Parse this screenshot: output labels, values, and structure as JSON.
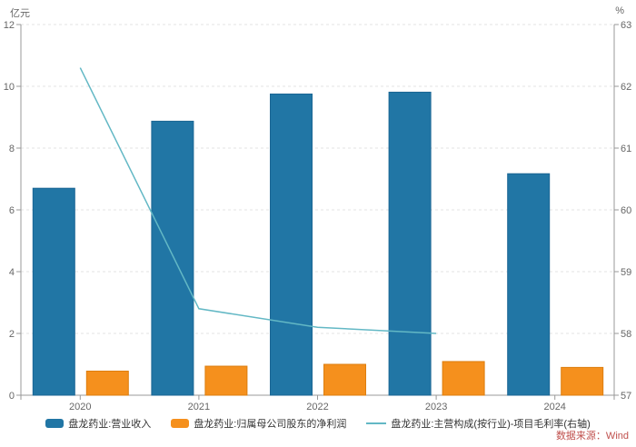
{
  "axes": {
    "left_unit": "亿元",
    "right_unit": "%"
  },
  "source_note": {
    "text": "数据来源：Wind",
    "color": "#C0504D"
  },
  "colors": {
    "axis_line": "#999999",
    "tick_text": "#666666",
    "grid_line": "#E3E3E3",
    "legend_text": "#333333",
    "background": "#FFFFFF"
  },
  "chart_data": {
    "type": "bar",
    "title": "",
    "categories": [
      "2020",
      "2021",
      "2022",
      "2023",
      "2024"
    ],
    "series": [
      {
        "name": "盘龙药业:营业收入",
        "type": "bar",
        "axis": "left",
        "color": "#2176A5",
        "stroke": "#1B6694",
        "values": [
          6.7,
          8.87,
          9.75,
          9.81,
          7.17
        ]
      },
      {
        "name": "盘龙药业:归属母公司股东的净利润",
        "type": "bar",
        "axis": "left",
        "color": "#F5901D",
        "stroke": "#DD7E0F",
        "values": [
          0.78,
          0.94,
          1.0,
          1.09,
          0.9
        ]
      },
      {
        "name": "盘龙药业:主营构成(按行业)-项目毛利率(右轴)",
        "type": "line",
        "axis": "right",
        "color": "#63B8C5",
        "values": [
          62.3,
          58.4,
          58.1,
          58.0,
          null
        ]
      }
    ],
    "left_axis": {
      "min": 0,
      "max": 12,
      "step": 2,
      "unit": "亿元"
    },
    "right_axis": {
      "min": 57,
      "max": 63,
      "step": 1,
      "unit": "%"
    },
    "grid": "horizontal-dashed",
    "legend_position": "bottom"
  }
}
